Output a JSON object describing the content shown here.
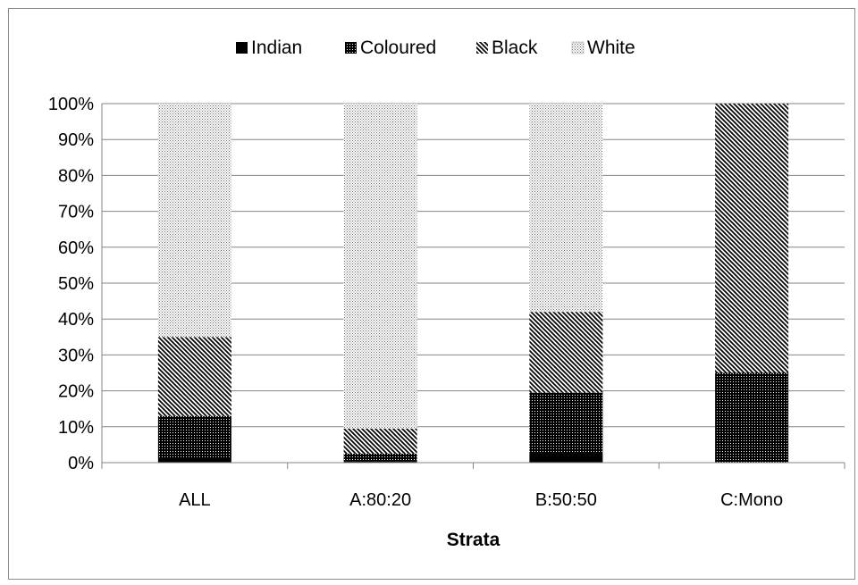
{
  "chart_data": {
    "type": "bar",
    "stacked": true,
    "percent": true,
    "title": "",
    "xlabel": "Strata",
    "ylabel": "",
    "categories": [
      "ALL",
      "A:80:20",
      "B:50:50",
      "C:Mono"
    ],
    "series": [
      {
        "name": "Indian",
        "values": [
          1,
          0.3,
          2.5,
          0
        ],
        "pattern": "solid"
      },
      {
        "name": "Coloured",
        "values": [
          12,
          2.2,
          17,
          25
        ],
        "pattern": "dense-dots"
      },
      {
        "name": "Black",
        "values": [
          22,
          7,
          22.5,
          75
        ],
        "pattern": "diagonal"
      },
      {
        "name": "White",
        "values": [
          65,
          90.5,
          58,
          0
        ],
        "pattern": "fine-dots"
      }
    ],
    "ylim": [
      0,
      100
    ],
    "yticks": [
      "0%",
      "10%",
      "20%",
      "30%",
      "40%",
      "50%",
      "60%",
      "70%",
      "80%",
      "90%",
      "100%"
    ],
    "grid": true,
    "legend": "top",
    "colors": {
      "ink": "#000000",
      "grid": "#868686",
      "frame": "#8c8c8c"
    }
  }
}
